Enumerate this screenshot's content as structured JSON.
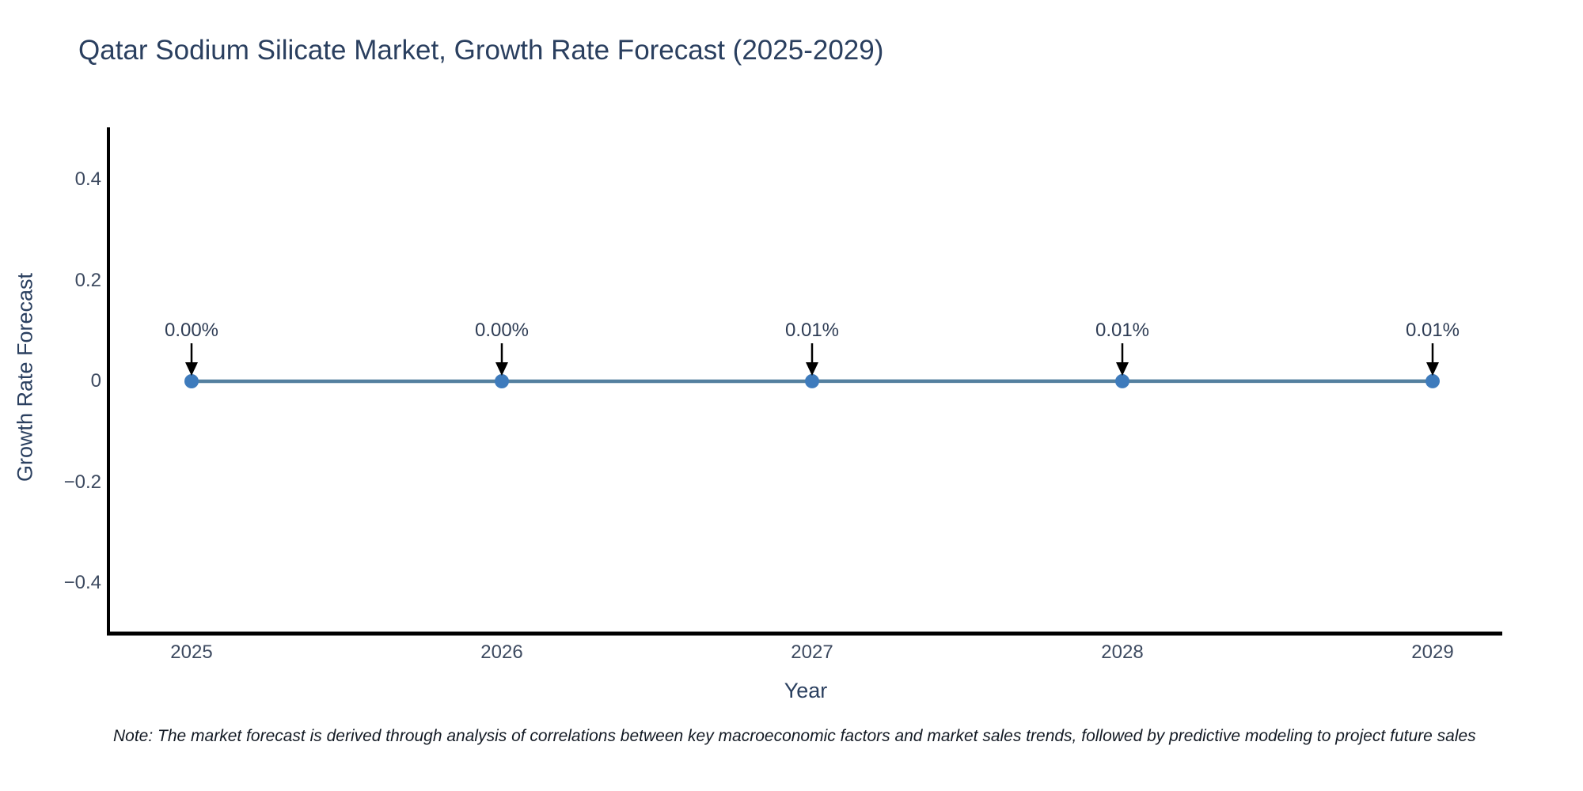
{
  "note": "Note: The market forecast is derived through analysis of correlations between key macroeconomic factors and market sales trends, followed by predictive modeling to project future sales",
  "chart_data": {
    "type": "line",
    "title": "Qatar Sodium Silicate Market, Growth Rate Forecast (2025-2029)",
    "xlabel": "Year",
    "ylabel": "Growth Rate Forecast",
    "x": [
      2025,
      2026,
      2027,
      2028,
      2029
    ],
    "xtick_labels": [
      "2025",
      "2026",
      "2027",
      "2028",
      "2029"
    ],
    "series": [
      {
        "name": "Growth Rate Forecast",
        "values": [
          0.0,
          0.0,
          0.0001,
          0.0001,
          0.0001
        ],
        "point_labels": [
          "0.00%",
          "0.00%",
          "0.01%",
          "0.01%",
          "0.01%"
        ]
      }
    ],
    "ylim": [
      -0.5,
      0.5
    ],
    "xlim": [
      2024.73,
      2029.25
    ],
    "yticks": [
      0.4,
      0.2,
      0,
      -0.2,
      -0.4
    ],
    "ytick_labels": [
      "0.4",
      "0.2",
      "0",
      "−0.2",
      "−0.4"
    ],
    "grid": false,
    "legend": false,
    "annotation_style": "label-with-down-arrow",
    "colors": {
      "line": "#54809f",
      "marker": "#3e7bbc",
      "axis": "#000000",
      "arrow": "#000000",
      "title_text": "#2a3f5f",
      "tick_text": "#3d4a60",
      "background": "#ffffff"
    }
  }
}
